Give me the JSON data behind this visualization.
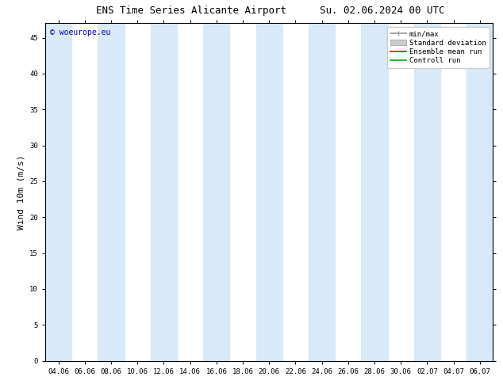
{
  "title_left": "ENS Time Series Alicante Airport",
  "title_right": "Su. 02.06.2024 00 UTC",
  "ylabel": "Wind 10m (m/s)",
  "ylim": [
    0,
    47
  ],
  "yticks": [
    0,
    5,
    10,
    15,
    20,
    25,
    30,
    35,
    40,
    45
  ],
  "xtick_labels": [
    "04.06",
    "06.06",
    "08.06",
    "10.06",
    "12.06",
    "14.06",
    "16.06",
    "18.06",
    "20.06",
    "22.06",
    "24.06",
    "26.06",
    "28.06",
    "30.06",
    "02.07",
    "04.07",
    "06.07"
  ],
  "watermark": "© woeurope.eu",
  "background_color": "#ffffff",
  "plot_bg_color": "#ffffff",
  "shaded_band_color": "#d8eaf8",
  "shaded_columns_x": [
    0,
    2,
    4,
    6,
    8,
    10,
    12,
    14,
    16
  ],
  "legend_labels": [
    "min/max",
    "Standard deviation",
    "Ensemble mean run",
    "Controll run"
  ],
  "legend_colors": [
    "#999999",
    "#bbbbbb",
    "#ff0000",
    "#00aa00"
  ],
  "title_fontsize": 9,
  "tick_fontsize": 6.5,
  "ylabel_fontsize": 8,
  "watermark_fontsize": 7,
  "legend_fontsize": 6.5
}
